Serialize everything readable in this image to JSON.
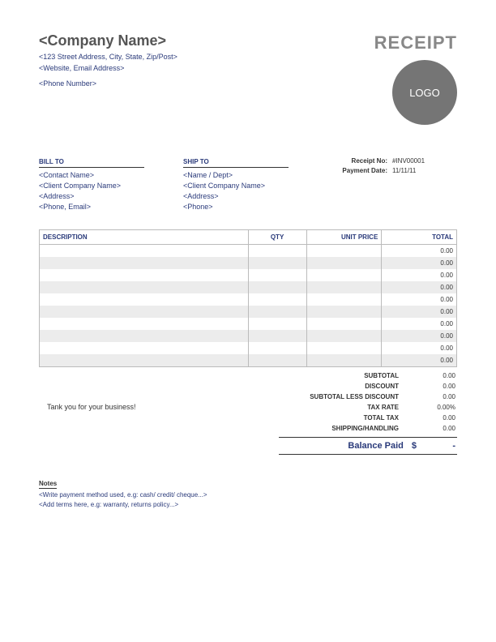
{
  "header": {
    "company_name": "<Company Name>",
    "address": "<123 Street Address, City, State, Zip/Post>",
    "web_email": "<Website, Email Address>",
    "phone": "<Phone Number>",
    "receipt_title": "RECEIPT",
    "logo_text": "LOGO"
  },
  "meta": {
    "receipt_no_label": "Receipt No:",
    "receipt_no": "#INV00001",
    "payment_date_label": "Payment Date:",
    "payment_date": "11/11/11"
  },
  "bill_to": {
    "label": "BILL TO",
    "lines": [
      "<Contact Name>",
      "<Client Company Name>",
      "<Address>",
      "<Phone, Email>"
    ]
  },
  "ship_to": {
    "label": "SHIP TO",
    "lines": [
      "<Name / Dept>",
      "<Client Company Name>",
      "<Address>",
      "<Phone>"
    ]
  },
  "table": {
    "headers": {
      "description": "DESCRIPTION",
      "qty": "QTY",
      "unit_price": "UNIT PRICE",
      "total": "TOTAL"
    },
    "rows": [
      {
        "desc": "",
        "qty": "",
        "price": "",
        "total": "0.00"
      },
      {
        "desc": "",
        "qty": "",
        "price": "",
        "total": "0.00"
      },
      {
        "desc": "",
        "qty": "",
        "price": "",
        "total": "0.00"
      },
      {
        "desc": "",
        "qty": "",
        "price": "",
        "total": "0.00"
      },
      {
        "desc": "",
        "qty": "",
        "price": "",
        "total": "0.00"
      },
      {
        "desc": "",
        "qty": "",
        "price": "",
        "total": "0.00"
      },
      {
        "desc": "",
        "qty": "",
        "price": "",
        "total": "0.00"
      },
      {
        "desc": "",
        "qty": "",
        "price": "",
        "total": "0.00"
      },
      {
        "desc": "",
        "qty": "",
        "price": "",
        "total": "0.00"
      },
      {
        "desc": "",
        "qty": "",
        "price": "",
        "total": "0.00"
      }
    ],
    "row_alt_bg": "#ececec",
    "border_color": "#bbbbbb"
  },
  "thanks": "Tank you for your business!",
  "totals": {
    "rows": [
      {
        "label": "SUBTOTAL",
        "value": "0.00"
      },
      {
        "label": "DISCOUNT",
        "value": "0.00"
      },
      {
        "label": "SUBTOTAL LESS DISCOUNT",
        "value": "0.00"
      },
      {
        "label": "TAX RATE",
        "value": "0.00%"
      },
      {
        "label": "TOTAL TAX",
        "value": "0.00"
      },
      {
        "label": "SHIPPING/HANDLING",
        "value": "0.00"
      }
    ],
    "balance_label": "Balance Paid",
    "balance_currency": "$",
    "balance_value": "-"
  },
  "notes": {
    "label": "Notes",
    "lines": [
      "<Write payment method used, e.g: cash/ credit/ cheque...>",
      "<Add terms here, e.g: warranty, returns policy...>"
    ]
  },
  "colors": {
    "accent": "#2a3a7a",
    "muted": "#888888",
    "logo_bg": "#757575"
  }
}
